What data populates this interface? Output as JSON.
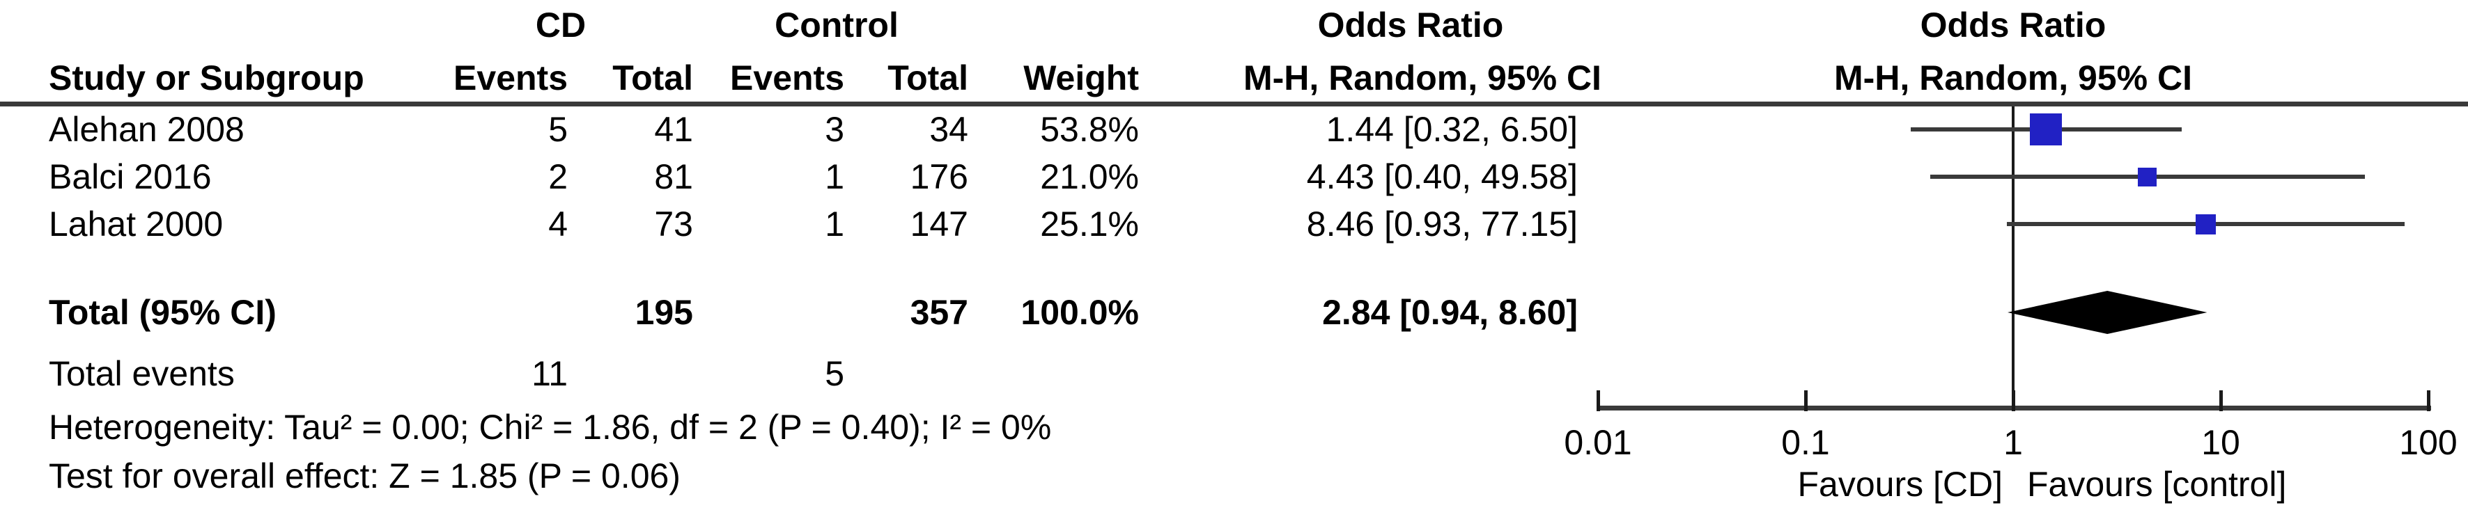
{
  "header": {
    "group1": "CD",
    "group2": "Control",
    "study": "Study or Subgroup",
    "events1": "Events",
    "total1": "Total",
    "events2": "Events",
    "total2": "Total",
    "weight": "Weight",
    "or_col_title": "Odds Ratio",
    "or_col_sub": "M-H, Random, 95% CI",
    "plot_title": "Odds Ratio",
    "plot_sub": "M-H, Random, 95% CI"
  },
  "rows": [
    {
      "study": "Alehan 2008",
      "cd_events": "5",
      "cd_total": "41",
      "ctrl_events": "3",
      "ctrl_total": "34",
      "weight": "53.8%",
      "or_ci": "1.44 [0.32, 6.50]"
    },
    {
      "study": "Balci 2016",
      "cd_events": "2",
      "cd_total": "81",
      "ctrl_events": "1",
      "ctrl_total": "176",
      "weight": "21.0%",
      "or_ci": "4.43 [0.40, 49.58]"
    },
    {
      "study": "Lahat 2000",
      "cd_events": "4",
      "cd_total": "73",
      "ctrl_events": "1",
      "ctrl_total": "147",
      "weight": "25.1%",
      "or_ci": "8.46 [0.93, 77.15]"
    }
  ],
  "total_row": {
    "label": "Total (95% CI)",
    "cd_total": "195",
    "ctrl_total": "357",
    "weight": "100.0%",
    "or_ci": "2.84 [0.94, 8.60]"
  },
  "total_events": {
    "label": "Total events",
    "cd": "11",
    "ctrl": "5"
  },
  "footer": {
    "heterogeneity": "Heterogeneity: Tau² = 0.00; Chi² = 1.86, df = 2 (P = 0.40); I² = 0%",
    "overall_effect": "Test for overall effect: Z = 1.85 (P = 0.06)"
  },
  "chart_data": {
    "type": "forest",
    "x_scale": "log10",
    "x_range": [
      0.01,
      100
    ],
    "axis_ticks": [
      0.01,
      0.1,
      1,
      10,
      100
    ],
    "axis_labels": [
      "0.01",
      "0.1",
      "1",
      "10",
      "100"
    ],
    "favours_left": "Favours [CD]",
    "favours_right": "Favours [control]",
    "effect_measure": "Odds Ratio, M-H, Random, 95% CI",
    "studies": [
      {
        "name": "Alehan 2008",
        "or": 1.44,
        "ci_low": 0.32,
        "ci_high": 6.5,
        "weight_pct": 53.8
      },
      {
        "name": "Balci 2016",
        "or": 4.43,
        "ci_low": 0.4,
        "ci_high": 49.58,
        "weight_pct": 21.0
      },
      {
        "name": "Lahat 2000",
        "or": 8.46,
        "ci_low": 0.93,
        "ci_high": 77.15,
        "weight_pct": 25.1
      }
    ],
    "total": {
      "or": 2.84,
      "ci_low": 0.94,
      "ci_high": 8.6
    },
    "marker_color": "#2121c4",
    "ci_color": "#3a3a3a",
    "diamond_color": "#000000"
  }
}
